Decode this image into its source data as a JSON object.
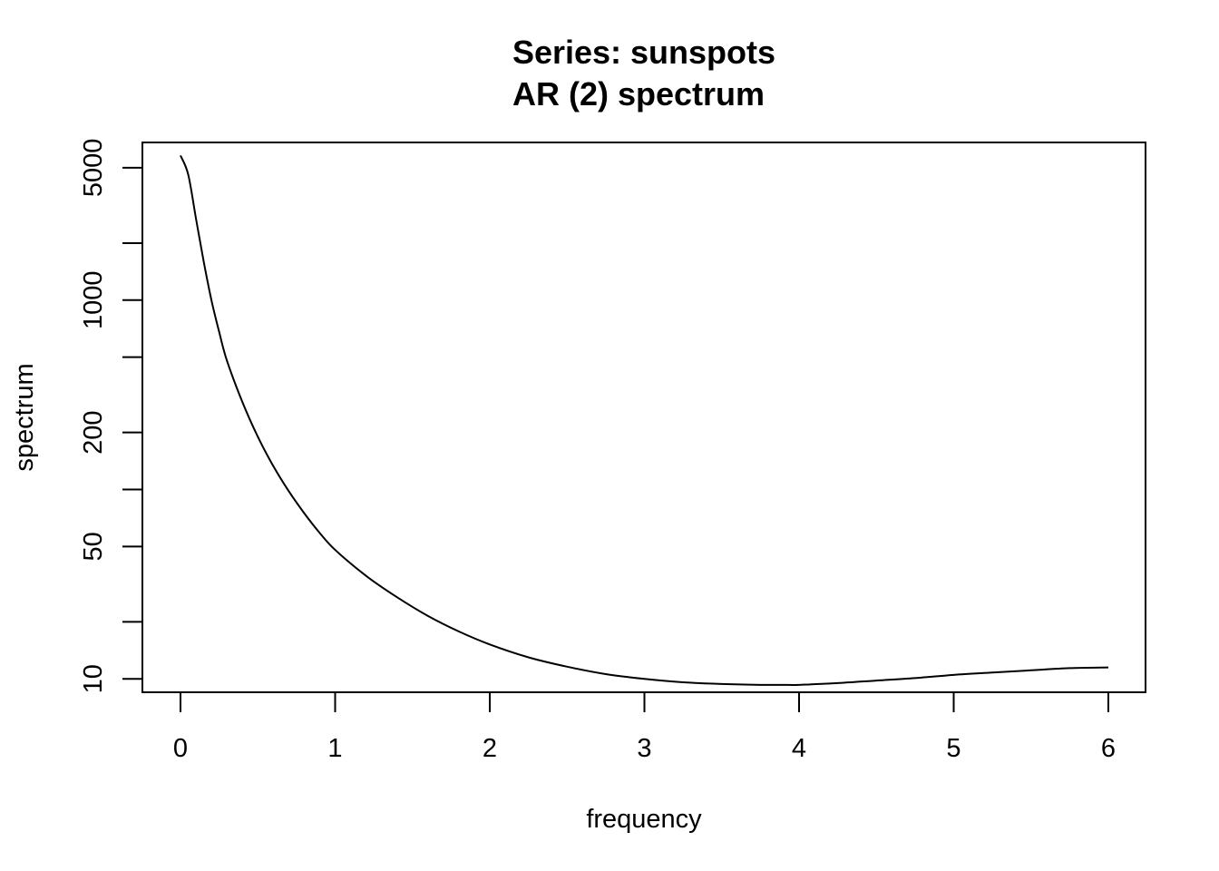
{
  "chart_data": {
    "type": "line",
    "title": "Series: sunspots",
    "subtitle": "AR (2) spectrum",
    "xlabel": "frequency",
    "ylabel": "spectrum",
    "y_scale": "log",
    "grid": false,
    "xlim": [
      0,
      6
    ],
    "ylim": [
      8.5,
      6800
    ],
    "x_ticks": [
      0,
      1,
      2,
      3,
      4,
      5,
      6
    ],
    "y_ticks": [
      10,
      20,
      50,
      100,
      200,
      500,
      1000,
      2000,
      5000
    ],
    "y_tick_labels": [
      "10",
      "",
      "50",
      "",
      "200",
      "",
      "1000",
      "",
      "5000"
    ],
    "series": [
      {
        "color": "#000000",
        "x": [
          0,
          0.05,
          0.1,
          0.15,
          0.2,
          0.25,
          0.3,
          0.4,
          0.5,
          0.6,
          0.7,
          0.8,
          0.9,
          1.0,
          1.2,
          1.4,
          1.6,
          1.8,
          2.0,
          2.25,
          2.5,
          2.75,
          3.0,
          3.25,
          3.5,
          3.75,
          3.9,
          4.0,
          4.25,
          4.5,
          4.75,
          5.0,
          5.25,
          5.5,
          5.75,
          6.0
        ],
        "y": [
          5800,
          4600,
          2700,
          1600,
          1000,
          680,
          480,
          290,
          190,
          133,
          98,
          75,
          59,
          48,
          35,
          27,
          21.5,
          17.8,
          15.2,
          13.0,
          11.6,
          10.6,
          10.0,
          9.6,
          9.4,
          9.3,
          9.3,
          9.3,
          9.5,
          9.8,
          10.1,
          10.5,
          10.8,
          11.1,
          11.4,
          11.5
        ]
      }
    ]
  }
}
